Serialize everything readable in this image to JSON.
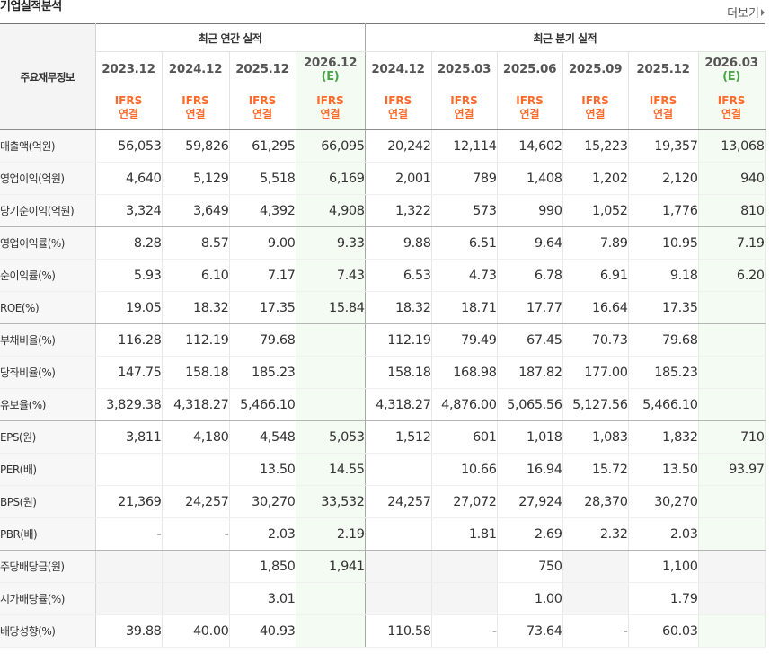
{
  "header": {
    "title": "기업실적분석",
    "more_label": "더보기"
  },
  "table": {
    "main_header": "주요재무정보",
    "groups": [
      {
        "label": "최근 연간 실적",
        "span": 4
      },
      {
        "label": "최근 분기 실적",
        "span": 6
      }
    ],
    "columns": [
      {
        "period": "2023.12",
        "estimate": "",
        "basis1": "IFRS",
        "basis2": "연결",
        "is_estimate": false
      },
      {
        "period": "2024.12",
        "estimate": "",
        "basis1": "IFRS",
        "basis2": "연결",
        "is_estimate": false
      },
      {
        "period": "2025.12",
        "estimate": "",
        "basis1": "IFRS",
        "basis2": "연결",
        "is_estimate": false
      },
      {
        "period": "2026.12",
        "estimate": "(E)",
        "basis1": "IFRS",
        "basis2": "연결",
        "is_estimate": true
      },
      {
        "period": "2024.12",
        "estimate": "",
        "basis1": "IFRS",
        "basis2": "연결",
        "is_estimate": false
      },
      {
        "period": "2025.03",
        "estimate": "",
        "basis1": "IFRS",
        "basis2": "연결",
        "is_estimate": false
      },
      {
        "period": "2025.06",
        "estimate": "",
        "basis1": "IFRS",
        "basis2": "연결",
        "is_estimate": false
      },
      {
        "period": "2025.09",
        "estimate": "",
        "basis1": "IFRS",
        "basis2": "연결",
        "is_estimate": false
      },
      {
        "period": "2025.12",
        "estimate": "",
        "basis1": "IFRS",
        "basis2": "연결",
        "is_estimate": false
      },
      {
        "period": "2026.03",
        "estimate": "(E)",
        "basis1": "IFRS",
        "basis2": "연결",
        "is_estimate": true
      }
    ],
    "rows": [
      {
        "label": "매출액(억원)",
        "group_end": false,
        "values": [
          "56,053",
          "59,826",
          "61,295",
          "66,095",
          "20,242",
          "12,114",
          "14,602",
          "15,223",
          "19,357",
          "13,068"
        ]
      },
      {
        "label": "영업이익(억원)",
        "group_end": false,
        "values": [
          "4,640",
          "5,129",
          "5,518",
          "6,169",
          "2,001",
          "789",
          "1,408",
          "1,202",
          "2,120",
          "940"
        ]
      },
      {
        "label": "당기순이익(억원)",
        "group_end": true,
        "values": [
          "3,324",
          "3,649",
          "4,392",
          "4,908",
          "1,322",
          "573",
          "990",
          "1,052",
          "1,776",
          "810"
        ]
      },
      {
        "label": "영업이익률(%)",
        "group_end": false,
        "values": [
          "8.28",
          "8.57",
          "9.00",
          "9.33",
          "9.88",
          "6.51",
          "9.64",
          "7.89",
          "10.95",
          "7.19"
        ]
      },
      {
        "label": "순이익률(%)",
        "group_end": false,
        "values": [
          "5.93",
          "6.10",
          "7.17",
          "7.43",
          "6.53",
          "4.73",
          "6.78",
          "6.91",
          "9.18",
          "6.20"
        ]
      },
      {
        "label": "ROE(%)",
        "group_end": true,
        "values": [
          "19.05",
          "18.32",
          "17.35",
          "15.84",
          "18.32",
          "18.71",
          "17.77",
          "16.64",
          "17.35",
          ""
        ]
      },
      {
        "label": "부채비율(%)",
        "group_end": false,
        "values": [
          "116.28",
          "112.19",
          "79.68",
          "",
          "112.19",
          "79.49",
          "67.45",
          "70.73",
          "79.68",
          ""
        ]
      },
      {
        "label": "당좌비율(%)",
        "group_end": false,
        "values": [
          "147.75",
          "158.18",
          "185.23",
          "",
          "158.18",
          "168.98",
          "187.82",
          "177.00",
          "185.23",
          ""
        ]
      },
      {
        "label": "유보율(%)",
        "group_end": true,
        "values": [
          "3,829.38",
          "4,318.27",
          "5,466.10",
          "",
          "4,318.27",
          "4,876.00",
          "5,065.56",
          "5,127.56",
          "5,466.10",
          ""
        ]
      },
      {
        "label": "EPS(원)",
        "group_end": false,
        "values": [
          "3,811",
          "4,180",
          "4,548",
          "5,053",
          "1,512",
          "601",
          "1,018",
          "1,083",
          "1,832",
          "710"
        ]
      },
      {
        "label": "PER(배)",
        "group_end": false,
        "values": [
          "",
          "",
          "13.50",
          "14.55",
          "",
          "10.66",
          "16.94",
          "15.72",
          "13.50",
          "93.97"
        ]
      },
      {
        "label": "BPS(원)",
        "group_end": false,
        "values": [
          "21,369",
          "24,257",
          "30,270",
          "33,532",
          "24,257",
          "27,072",
          "27,924",
          "28,370",
          "30,270",
          ""
        ]
      },
      {
        "label": "PBR(배)",
        "group_end": true,
        "values": [
          "-",
          "-",
          "2.03",
          "2.19",
          "",
          "1.81",
          "2.69",
          "2.32",
          "2.03",
          ""
        ]
      },
      {
        "label": "주당배당금(원)",
        "group_end": false,
        "values": [
          "",
          "",
          "1,850",
          "1,941",
          "",
          "",
          "750",
          "",
          "1,100",
          ""
        ]
      },
      {
        "label": "시가배당률(%)",
        "group_end": false,
        "values": [
          "",
          "",
          "3.01",
          "",
          "",
          "",
          "1.00",
          "",
          "1.79",
          ""
        ]
      },
      {
        "label": "배당성향(%)",
        "group_end": false,
        "values": [
          "39.88",
          "40.00",
          "40.93",
          "",
          "110.58",
          "-",
          "73.64",
          "-",
          "60.03",
          ""
        ]
      }
    ],
    "blank_cells": [
      [
        13,
        0
      ],
      [
        13,
        1
      ],
      [
        13,
        4
      ],
      [
        13,
        5
      ],
      [
        13,
        7
      ],
      [
        13,
        9
      ],
      [
        14,
        0
      ],
      [
        14,
        1
      ],
      [
        14,
        4
      ],
      [
        14,
        5
      ],
      [
        14,
        7
      ],
      [
        14,
        9
      ]
    ]
  },
  "colors": {
    "ifrs_orange": "#ff6a2a",
    "estimate_green": "#4aa44a",
    "estimate_bg": "#f4fbf2",
    "label_bg": "#f7f7f7"
  }
}
